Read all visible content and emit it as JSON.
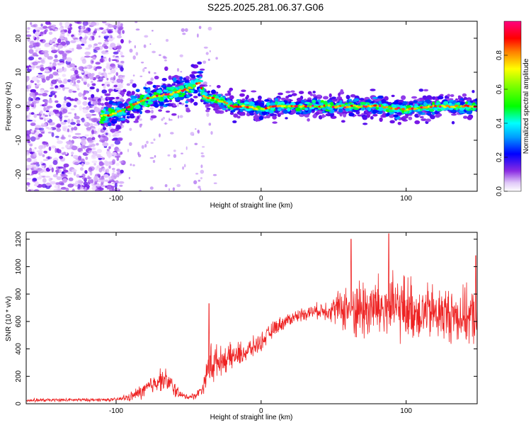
{
  "title": "S225.2025.281.06.37.G06",
  "colors": {
    "snr_line": "#ee2222",
    "center_line": "#000000",
    "axis": "#000000"
  },
  "chart_data": [
    {
      "id": "spectrogram",
      "type": "heatmap",
      "xlabel": "Height of straight line (km)",
      "ylabel": "Frequency (Hz)",
      "xlim": [
        -162,
        149
      ],
      "ylim": [
        -25,
        25
      ],
      "xticks": [
        -100,
        0,
        100
      ],
      "yticks": [
        -20,
        -10,
        0,
        10,
        20
      ],
      "colorbar": {
        "label": "Normalized spectral amplitude",
        "range": [
          0,
          1
        ],
        "ticks": [
          0.0,
          0.2,
          0.4,
          0.6,
          0.8
        ],
        "tick_labels": [
          "0.0",
          "0.2",
          "0.4",
          "0.6",
          "0.8"
        ],
        "colormap": "rainbow"
      },
      "ridge": {
        "description": "dominant frequency trace",
        "x": [
          -110,
          -100,
          -90,
          -80,
          -70,
          -60,
          -50,
          -42,
          -40,
          -30,
          -20,
          -10,
          0,
          10,
          20,
          30,
          40,
          60,
          80,
          100,
          120,
          149
        ],
        "y": [
          -3,
          -2,
          0,
          2,
          3,
          4,
          5,
          7,
          3,
          2,
          0,
          0,
          -1,
          0,
          0,
          0,
          0,
          0,
          0,
          -1,
          0,
          0
        ]
      },
      "noise_region_km": [
        -162,
        -100
      ]
    },
    {
      "id": "snr",
      "type": "line",
      "xlabel": "Height of straight line (km)",
      "ylabel": "SNR (10 * v/v)",
      "xlim": [
        -162,
        149
      ],
      "ylim": [
        0,
        1250
      ],
      "xticks": [
        -100,
        0,
        100
      ],
      "yticks": [
        0,
        200,
        400,
        600,
        800,
        1000,
        1200
      ],
      "envelope": {
        "x": [
          -162,
          -100,
          -90,
          -80,
          -70,
          -65,
          -60,
          -55,
          -50,
          -45,
          -40,
          -36,
          -34,
          -30,
          -20,
          -10,
          0,
          10,
          20,
          30,
          40,
          50,
          60,
          70,
          80,
          90,
          100,
          110,
          120,
          130,
          140,
          149
        ],
        "baseline": [
          25,
          30,
          50,
          100,
          180,
          170,
          110,
          60,
          50,
          60,
          120,
          280,
          300,
          310,
          340,
          380,
          450,
          560,
          620,
          660,
          680,
          690,
          700,
          690,
          700,
          690,
          700,
          670,
          660,
          650,
          640,
          630
        ],
        "spread": [
          15,
          15,
          40,
          80,
          100,
          100,
          80,
          30,
          25,
          30,
          60,
          150,
          250,
          120,
          120,
          100,
          80,
          70,
          60,
          60,
          70,
          120,
          250,
          300,
          300,
          300,
          300,
          250,
          260,
          250,
          250,
          250
        ]
      },
      "annotated_peaks": [
        {
          "x": -36,
          "y": 730
        },
        {
          "x": 62,
          "y": 1200
        },
        {
          "x": 88,
          "y": 1240
        },
        {
          "x": 148,
          "y": 1080
        }
      ]
    }
  ]
}
